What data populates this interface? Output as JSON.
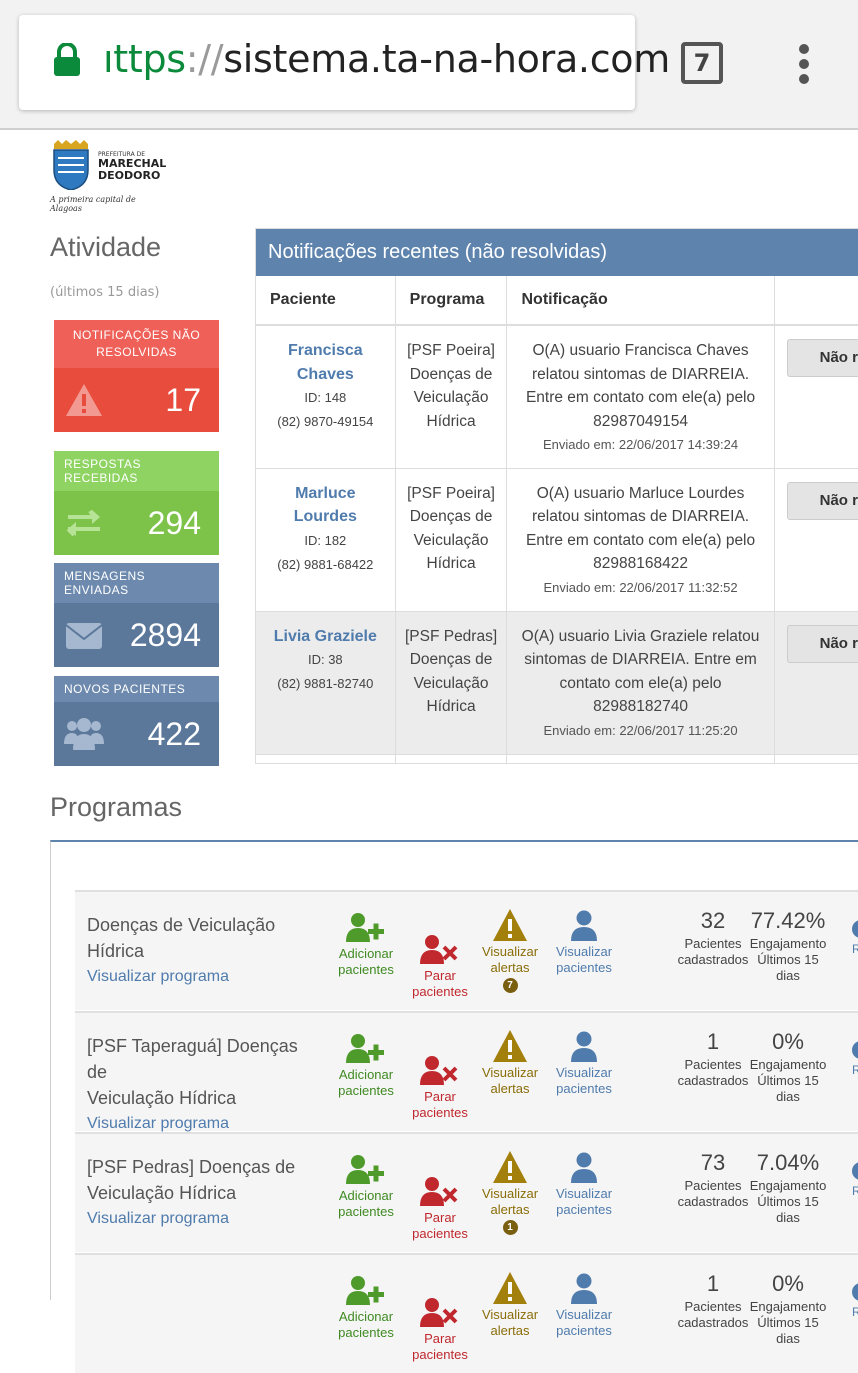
{
  "browser": {
    "url_scheme": "ıttps",
    "url_sep": "://",
    "url_host": "sistema.ta-na-hora.com",
    "tab_count": "7"
  },
  "logo": {
    "line1": "PREFEITURA DE",
    "line2": "MARECHAL",
    "line3": "DEODORO",
    "tagline": "A primeira capital de Alagoas"
  },
  "activity": {
    "title": "Atividade",
    "subtitle": "(últimos 15 dias)",
    "stats": [
      {
        "label": "NOTIFICAÇÕES NÃO RESOLVIDAS",
        "value": "17",
        "icon": "warning-icon"
      },
      {
        "label": "RESPOSTAS RECEBIDAS",
        "value": "294",
        "icon": "exchange-icon"
      },
      {
        "label": "MENSAGENS ENVIADAS",
        "value": "2894",
        "icon": "envelope-icon"
      },
      {
        "label": "NOVOS PACIENTES",
        "value": "422",
        "icon": "users-icon"
      }
    ]
  },
  "notifications": {
    "title": "Notificações recentes (não resolvidas)",
    "columns": [
      "Paciente",
      "Programa",
      "Notificação"
    ],
    "rows": [
      {
        "name_1": "Francisca",
        "name_2": "Chaves",
        "id": "ID: 148",
        "phone": "(82) 9870-49154",
        "program": [
          "[PSF Poeira]",
          "Doenças de",
          "Veiculação",
          "Hídrica"
        ],
        "message": [
          "O(A) usuario Francisca Chaves",
          "relatou sintomas de DIARREIA.",
          "Entre em contato com ele(a) pelo",
          "82987049154"
        ],
        "sent": "Enviado em: 22/06/2017 14:39:24",
        "button": "Não r"
      },
      {
        "name_1": "Marluce",
        "name_2": "Lourdes",
        "id": "ID: 182",
        "phone": "(82) 9881-68422",
        "program": [
          "[PSF Poeira]",
          "Doenças de",
          "Veiculação",
          "Hídrica"
        ],
        "message": [
          "O(A) usuario Marluce Lourdes",
          "relatou sintomas de DIARREIA.",
          "Entre em contato com ele(a) pelo",
          "82988168422"
        ],
        "sent": "Enviado em: 22/06/2017 11:32:52",
        "button": "Não r"
      },
      {
        "name_1": "Livia Graziele",
        "name_2": "",
        "id": "ID: 38",
        "phone": "(82) 9881-82740",
        "program": [
          "[PSF Pedras]",
          "Doenças de",
          "Veiculação",
          "Hídrica"
        ],
        "message": [
          "O(A) usuario Livia Graziele relatou",
          "sintomas de DIARREIA. Entre em",
          "contato com ele(a) pelo",
          "82988182740"
        ],
        "sent": "Enviado em: 22/06/2017 11:25:20",
        "button": "Não r"
      }
    ]
  },
  "programs": {
    "title": "Programas",
    "labels": {
      "add": [
        "Adicionar",
        "pacientes"
      ],
      "stop": [
        "Parar",
        "pacientes"
      ],
      "alerts": [
        "Visualizar",
        "alertas"
      ],
      "view": [
        "Visualizar",
        "pacientes"
      ],
      "patients": [
        "Pacientes",
        "cadastrados"
      ],
      "engagement": [
        "Engajamento",
        "Últimos 15",
        "dias"
      ],
      "view_program": "Visualizar programa",
      "peek": "Re"
    },
    "rows": [
      {
        "name_1": "Doenças de Veiculação",
        "name_2": "Hídrica",
        "patients": "32",
        "engagement": "77.42%",
        "alerts_badge": "7"
      },
      {
        "name_1": "[PSF Taperaguá] Doenças de",
        "name_2": "Veiculação Hídrica",
        "patients": "1",
        "engagement": "0%",
        "alerts_badge": ""
      },
      {
        "name_1": "[PSF Pedras] Doenças de",
        "name_2": "Veiculação Hídrica",
        "patients": "73",
        "engagement": "7.04%",
        "alerts_badge": "1"
      },
      {
        "name_1": "",
        "name_2": "",
        "patients": "1",
        "engagement": "0%",
        "alerts_badge": ""
      }
    ]
  },
  "colors": {
    "red": "#e74c3c",
    "green": "#7dc349",
    "blue": "#5b789b",
    "header_blue": "#5e84ae",
    "link": "#4f7bad"
  }
}
